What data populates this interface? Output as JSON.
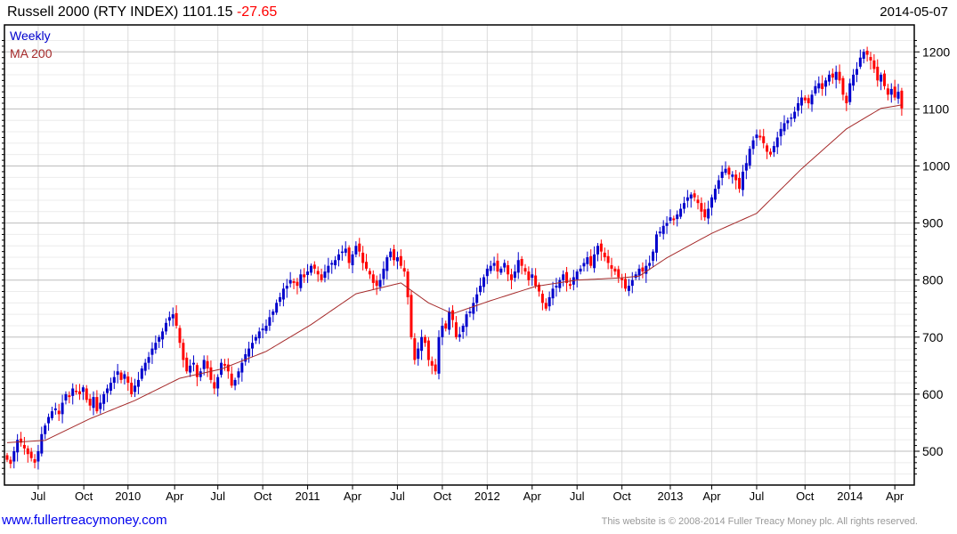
{
  "header": {
    "title": "Russell 2000 (RTY INDEX)",
    "last": "1101.15",
    "change": "-27.65",
    "date": "2014-05-07"
  },
  "footer": {
    "url": "www.fullertreacymoney.com",
    "copyright": "This website is © 2008-2014 Fuller Treacy Money plc. All rights reserved."
  },
  "colors": {
    "up": "#0000cc",
    "down": "#ff0000",
    "ma": "#a52a2a"
  },
  "chart_data": {
    "type": "candlestick",
    "title": "Russell 2000 (RTY INDEX)",
    "legend": [
      "Weekly",
      "MA 200"
    ],
    "legend_position": "top-left",
    "ylim": [
      450,
      1230
    ],
    "yticks": [
      500,
      600,
      700,
      800,
      900,
      1000,
      1100,
      1200
    ],
    "xticks": [
      {
        "label": "Jul",
        "week": 9
      },
      {
        "label": "Oct",
        "week": 22.2
      },
      {
        "label": "2010",
        "week": 35
      },
      {
        "label": "Apr",
        "week": 48.5
      },
      {
        "label": "Jul",
        "week": 61
      },
      {
        "label": "Oct",
        "week": 74
      },
      {
        "label": "2011",
        "week": 87
      },
      {
        "label": "Apr",
        "week": 100
      },
      {
        "label": "Jul",
        "week": 113
      },
      {
        "label": "Oct",
        "week": 126
      },
      {
        "label": "2012",
        "week": 139
      },
      {
        "label": "Apr",
        "week": 152
      },
      {
        "label": "Jul",
        "week": 165
      },
      {
        "label": "Oct",
        "week": 178
      },
      {
        "label": "2013",
        "week": 192
      },
      {
        "label": "Apr",
        "week": 204
      },
      {
        "label": "Jul",
        "week": 217
      },
      {
        "label": "Oct",
        "week": 231
      },
      {
        "label": "2014",
        "week": 244
      },
      {
        "label": "Apr",
        "week": 257
      }
    ],
    "weekly_close": [
      485,
      478,
      500,
      520,
      515,
      505,
      495,
      488,
      480,
      500,
      530,
      545,
      560,
      570,
      575,
      565,
      585,
      600,
      595,
      610,
      605,
      600,
      612,
      590,
      580,
      595,
      570,
      585,
      600,
      610,
      620,
      630,
      640,
      625,
      635,
      620,
      600,
      615,
      625,
      645,
      655,
      665,
      680,
      690,
      700,
      710,
      725,
      735,
      740,
      720,
      690,
      660,
      640,
      650,
      655,
      630,
      640,
      660,
      645,
      625,
      610,
      630,
      655,
      650,
      640,
      615,
      625,
      640,
      655,
      670,
      680,
      690,
      700,
      710,
      715,
      720,
      735,
      745,
      760,
      770,
      785,
      790,
      800,
      795,
      790,
      810,
      805,
      815,
      825,
      820,
      810,
      800,
      815,
      825,
      830,
      835,
      845,
      850,
      855,
      830,
      845,
      860,
      850,
      830,
      820,
      810,
      795,
      790,
      800,
      820,
      840,
      850,
      835,
      840,
      825,
      815,
      770,
      700,
      660,
      680,
      700,
      690,
      660,
      650,
      640,
      700,
      720,
      715,
      745,
      730,
      700,
      705,
      720,
      740,
      745,
      760,
      775,
      790,
      805,
      820,
      825,
      830,
      815,
      820,
      830,
      810,
      800,
      815,
      835,
      825,
      815,
      800,
      810,
      790,
      780,
      760,
      750,
      770,
      785,
      790,
      800,
      810,
      795,
      790,
      805,
      815,
      820,
      830,
      840,
      825,
      845,
      860,
      850,
      840,
      830,
      820,
      815,
      805,
      800,
      785,
      790,
      800,
      810,
      820,
      815,
      825,
      830,
      850,
      880,
      885,
      895,
      900,
      910,
      905,
      915,
      925,
      935,
      945,
      950,
      945,
      935,
      920,
      910,
      925,
      945,
      960,
      975,
      990,
      995,
      985,
      985,
      975,
      960,
      990,
      1005,
      1030,
      1045,
      1055,
      1050,
      1040,
      1025,
      1020,
      1035,
      1050,
      1065,
      1075,
      1080,
      1085,
      1095,
      1110,
      1120,
      1115,
      1110,
      1125,
      1140,
      1145,
      1135,
      1150,
      1160,
      1155,
      1165,
      1150,
      1125,
      1110,
      1145,
      1160,
      1170,
      1190,
      1200,
      1195,
      1185,
      1170,
      1150,
      1160,
      1140,
      1125,
      1135,
      1120,
      1130,
      1101
    ],
    "ma_200": [
      [
        0,
        515
      ],
      [
        11,
        519
      ],
      [
        24,
        557
      ],
      [
        37,
        589
      ],
      [
        50,
        628
      ],
      [
        62,
        644
      ],
      [
        75,
        675
      ],
      [
        88,
        722
      ],
      [
        101,
        776
      ],
      [
        114,
        795
      ],
      [
        122,
        760
      ],
      [
        129,
        741
      ],
      [
        140,
        764
      ],
      [
        153,
        789
      ],
      [
        165,
        800
      ],
      [
        178,
        804
      ],
      [
        183,
        807
      ],
      [
        191,
        839
      ],
      [
        204,
        882
      ],
      [
        217,
        917
      ],
      [
        230,
        995
      ],
      [
        243,
        1065
      ],
      [
        253,
        1101
      ],
      [
        259,
        1107
      ]
    ]
  }
}
